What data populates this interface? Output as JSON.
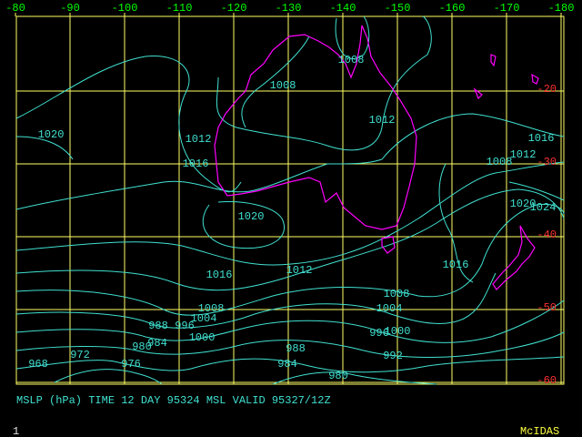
{
  "longitude_labels": [
    "-80",
    "-90",
    "-100",
    "-110",
    "-120",
    "-130",
    "-140",
    "-150",
    "-160",
    "-170",
    "-180"
  ],
  "latitude_labels": [
    "-20",
    "-30",
    "-40",
    "-50",
    "-60"
  ],
  "isobar_labels": [
    "1008",
    "1008",
    "1012",
    "1020",
    "1012",
    "1016",
    "1008",
    "1012",
    "1016",
    "1020",
    "1020",
    "1024",
    "1016",
    "1012",
    "1016",
    "1008",
    "1008",
    "1004",
    "1004",
    "988",
    "996",
    "1000",
    "996",
    "1000",
    "980",
    "984",
    "988",
    "972",
    "992",
    "968",
    "976",
    "984",
    "980"
  ],
  "caption": "MSLP (hPa) TIME 12 DAY 95324 MSL VALID 95327/12Z",
  "frame_number": "1",
  "brand": "McIDAS"
}
